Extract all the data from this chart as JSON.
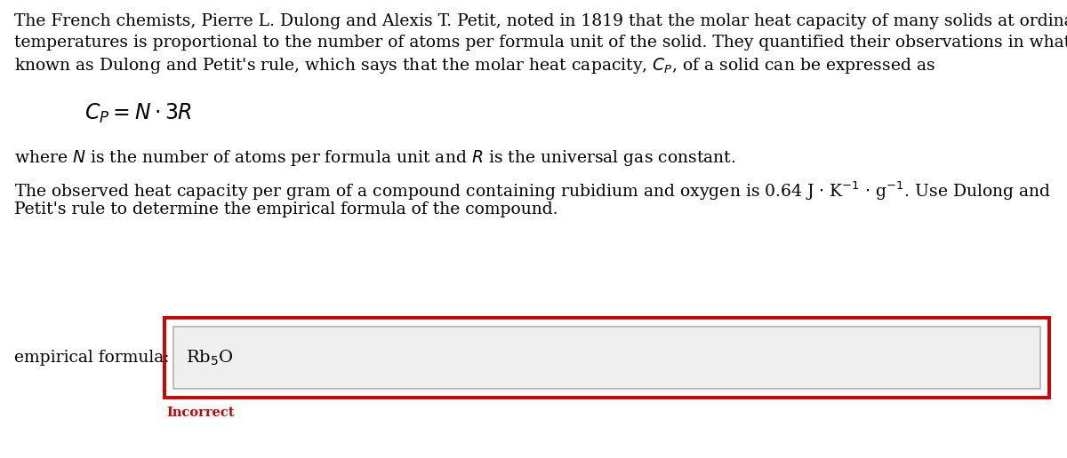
{
  "bg_color": "#ffffff",
  "text_color": "#000000",
  "red_color": "#cc0000",
  "label_text": "empirical formula:",
  "incorrect_text": "Incorrect",
  "font_size_main": 13.5,
  "font_size_formula": 17,
  "font_size_incorrect": 10.5,
  "font_size_answer": 14,
  "line1": "The French chemists, Pierre L. Dulong and Alexis T. Petit, noted in 1819 that the molar heat capacity of many solids at ordinary",
  "line2": "temperatures is proportional to the number of atoms per formula unit of the solid. They quantified their observations in what is",
  "line3": "known as Dulong and Petit's rule, which says that the molar heat capacity, $C_P$, of a solid can be expressed as",
  "line_where": "where $N$ is the number of atoms per formula unit and $R$ is the universal gas constant.",
  "line_obs1": "The observed heat capacity per gram of a compound containing rubidium and oxygen is 0.64 J $\\cdot$ K$^{-1}$ $\\cdot$ g$^{-1}$. Use Dulong and",
  "line_obs2": "Petit's rule to determine the empirical formula of the compound.",
  "answer": "Rb$_5$O"
}
